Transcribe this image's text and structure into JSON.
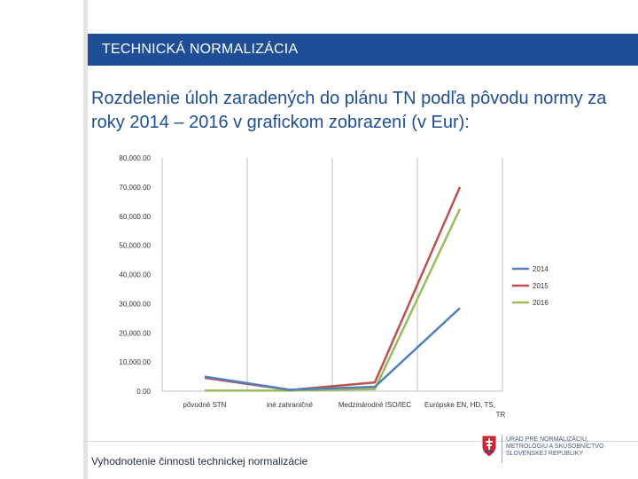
{
  "header": {
    "title": "TECHNICKÁ NORMALIZÁCIA"
  },
  "heading": "Rozdelenie  úloh zaradených do plánu TN podľa pôvodu normy za roky 2014 – 2016 v grafickom zobrazení (v Eur):",
  "footer": {
    "text": "Vyhodnotenie činnosti technickej normalizácie"
  },
  "logo": {
    "text": "ÚRAD PRE NORMALIZÁCIU, METROLÓGIU A SKÚŠOBNÍCTVO SLOVENSKEJ REPUBLIKY"
  },
  "colors": {
    "header_bg": "#1f4e96",
    "s2014": "#4f81bd",
    "s2015": "#c0504d",
    "s2016": "#9bbb59"
  },
  "chart_data": {
    "type": "line",
    "categories": [
      "pôvodné STN",
      "iné zahraničné",
      "Medzinárodné ISO/IEC",
      "Európske EN, HD, TS, TR"
    ],
    "ylim": [
      0,
      80000
    ],
    "yticks": [
      "0.00",
      "10,000.00",
      "20,000.00",
      "30,000.00",
      "40,000.00",
      "50,000.00",
      "60,000.00",
      "70,000.00",
      "80,000.00"
    ],
    "grid": "vertical category lines",
    "legend_position": "right",
    "series": [
      {
        "name": "2014",
        "values": [
          5000,
          500,
          1500,
          28500
        ],
        "color": "#4f81bd"
      },
      {
        "name": "2015",
        "values": [
          4600,
          400,
          3000,
          70000
        ],
        "color": "#c0504d"
      },
      {
        "name": "2016",
        "values": [
          200,
          200,
          700,
          62500
        ],
        "color": "#9bbb59"
      }
    ]
  }
}
